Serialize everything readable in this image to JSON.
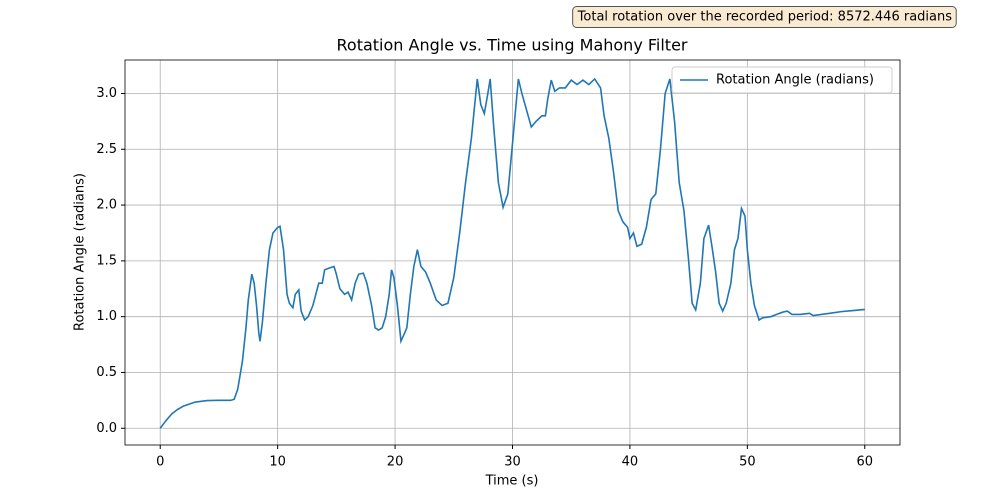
{
  "chart_data": {
    "type": "line",
    "title": "Rotation Angle vs. Time  using Mahony Filter",
    "xlabel": "Time (s)",
    "ylabel": "Rotation Angle (radians)",
    "annotation": "Total rotation over the recorded period: 8572.446 radians",
    "legend": "upper right",
    "grid": true,
    "xlim": [
      -3,
      63
    ],
    "ylim": [
      -0.15,
      3.3
    ],
    "xticks": [
      0,
      10,
      20,
      30,
      40,
      50,
      60
    ],
    "yticks": [
      {
        "value": 0,
        "label": "0.0"
      },
      0.5,
      {
        "value": 1,
        "label": "1.0"
      },
      1.5,
      {
        "value": 2,
        "label": "2.0"
      },
      2.5,
      {
        "value": 3,
        "label": "3.0"
      }
    ],
    "x": [
      0,
      0.5,
      1,
      1.5,
      2,
      3,
      4,
      5,
      6,
      6.3,
      6.6,
      7,
      7.3,
      7.5,
      7.8,
      8,
      8.2,
      8.4,
      8.5,
      8.7,
      9,
      9.3,
      9.6,
      10,
      10.2,
      10.5,
      10.8,
      11,
      11.3,
      11.5,
      11.8,
      12,
      12.3,
      12.6,
      13,
      13.5,
      13.8,
      14,
      14.5,
      14.8,
      15,
      15.3,
      15.7,
      16,
      16.3,
      16.6,
      16.9,
      17.3,
      17.6,
      18,
      18.3,
      18.6,
      18.9,
      19.2,
      19.5,
      19.7,
      19.9,
      20.2,
      20.5,
      20.8,
      21,
      21.3,
      21.6,
      21.9,
      22.2,
      22.6,
      23,
      23.5,
      24,
      24.5,
      25,
      25.5,
      26,
      26.5,
      27,
      27.3,
      27.6,
      27.9,
      28.1,
      28.4,
      28.8,
      29.2,
      29.6,
      30,
      30.3,
      30.5,
      30.8,
      31.2,
      31.6,
      32,
      32.5,
      32.8,
      33,
      33.3,
      33.6,
      34,
      34.5,
      35,
      35.5,
      36,
      36.5,
      37,
      37.5,
      37.8,
      38.2,
      38.6,
      39,
      39.4,
      39.8,
      40,
      40.3,
      40.6,
      41,
      41.4,
      41.8,
      42.2,
      42.6,
      43,
      43.4,
      43.8,
      44.2,
      44.6,
      45,
      45.3,
      45.6,
      46,
      46.3,
      46.7,
      47,
      47.3,
      47.6,
      47.9,
      48.2,
      48.6,
      48.9,
      49.2,
      49.5,
      49.8,
      50,
      50.3,
      50.6,
      51,
      51.3,
      52,
      52.5,
      53,
      53.4,
      53.8,
      54.5,
      55.3,
      55.6,
      57,
      58,
      59,
      60
    ],
    "series": [
      {
        "name": "Rotation Angle (radians)",
        "color": "#1f77b4",
        "values": [
          0,
          0.07,
          0.13,
          0.17,
          0.2,
          0.235,
          0.248,
          0.25,
          0.25,
          0.26,
          0.35,
          0.6,
          0.9,
          1.15,
          1.38,
          1.3,
          1.1,
          0.85,
          0.78,
          0.95,
          1.3,
          1.6,
          1.75,
          1.8,
          1.81,
          1.6,
          1.2,
          1.12,
          1.08,
          1.2,
          1.24,
          1.05,
          0.97,
          1.0,
          1.1,
          1.3,
          1.3,
          1.42,
          1.44,
          1.45,
          1.38,
          1.25,
          1.2,
          1.22,
          1.15,
          1.3,
          1.38,
          1.39,
          1.3,
          1.1,
          0.9,
          0.88,
          0.9,
          1.0,
          1.2,
          1.42,
          1.35,
          1.1,
          0.78,
          0.85,
          0.9,
          1.2,
          1.45,
          1.6,
          1.45,
          1.4,
          1.3,
          1.15,
          1.1,
          1.12,
          1.35,
          1.75,
          2.2,
          2.6,
          3.13,
          2.9,
          2.82,
          3.0,
          3.13,
          2.7,
          2.2,
          1.98,
          2.1,
          2.55,
          2.9,
          3.13,
          3.0,
          2.85,
          2.7,
          2.75,
          2.8,
          2.8,
          2.95,
          3.12,
          3.02,
          3.05,
          3.05,
          3.12,
          3.08,
          3.12,
          3.08,
          3.13,
          3.05,
          2.8,
          2.6,
          2.3,
          1.95,
          1.85,
          1.8,
          1.7,
          1.75,
          1.63,
          1.65,
          1.8,
          2.05,
          2.1,
          2.5,
          3.0,
          3.13,
          2.75,
          2.2,
          1.95,
          1.5,
          1.12,
          1.06,
          1.3,
          1.7,
          1.82,
          1.62,
          1.4,
          1.12,
          1.05,
          1.12,
          1.3,
          1.6,
          1.7,
          1.97,
          1.9,
          1.6,
          1.3,
          1.1,
          0.97,
          0.99,
          1.0,
          1.02,
          1.04,
          1.05,
          1.02,
          1.02,
          1.03,
          1.01,
          1.03,
          1.045,
          1.055,
          1.065
        ]
      }
    ]
  }
}
